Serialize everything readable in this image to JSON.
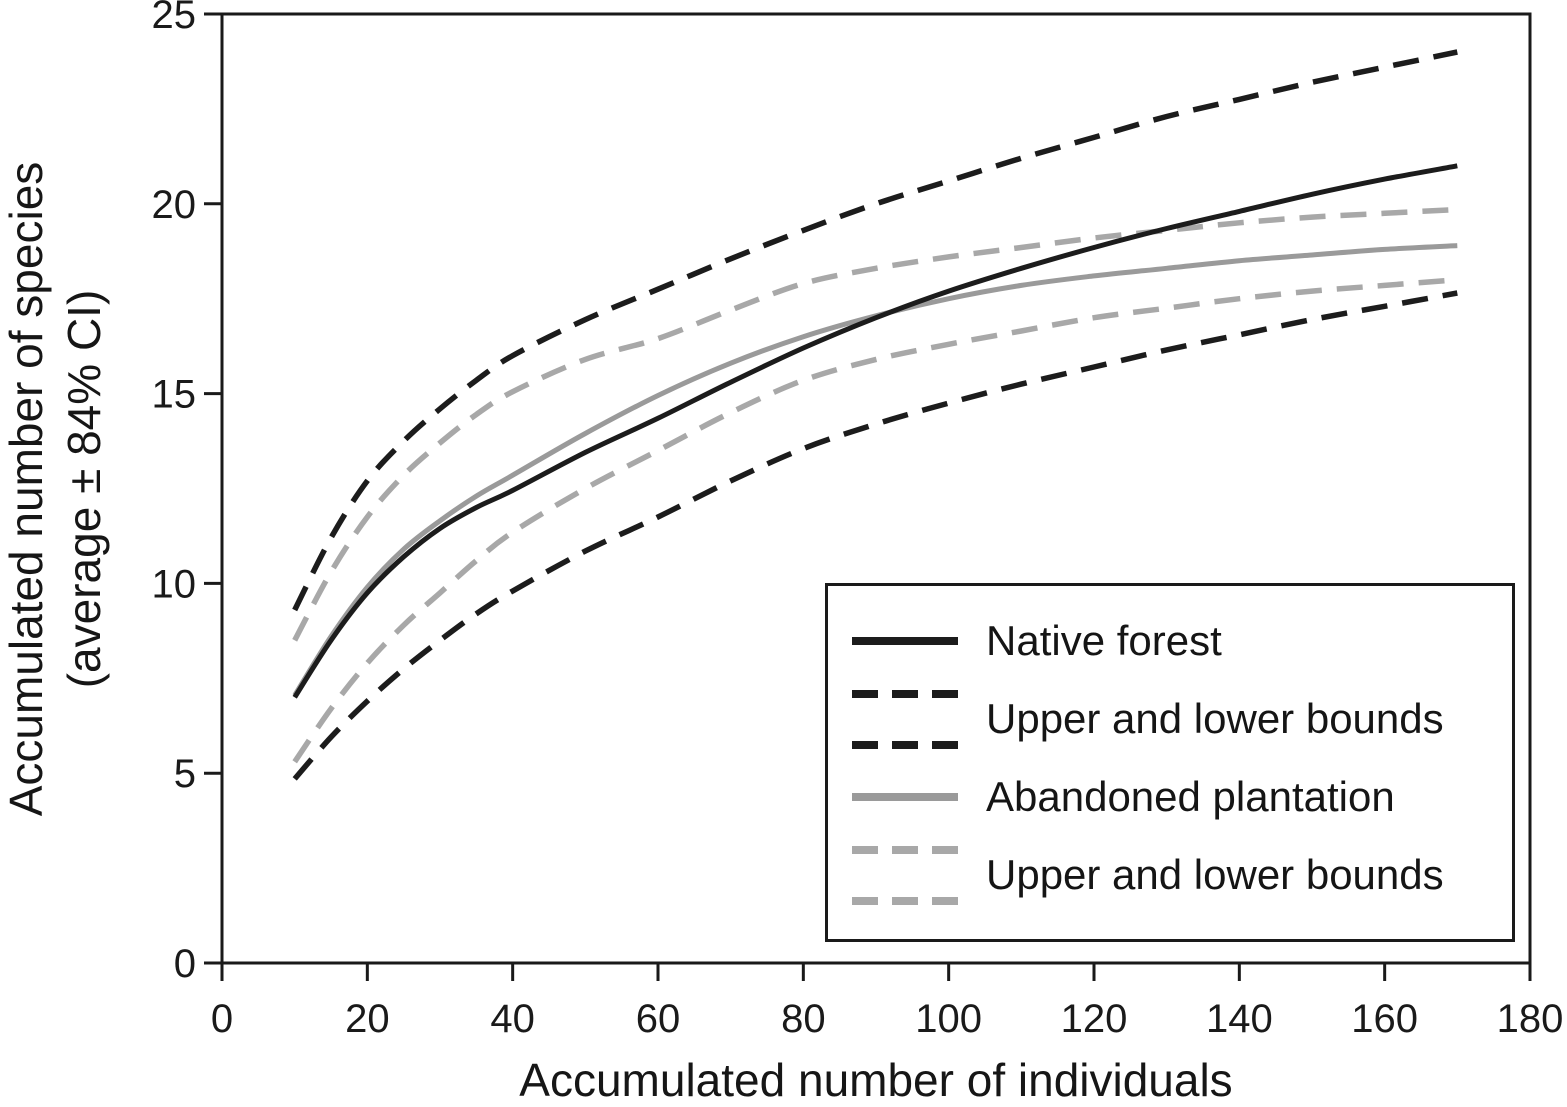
{
  "colors": {
    "black": "#1c1c1c",
    "gray_solid": "#9a9a9a",
    "gray_dash": "#a8a8a8",
    "axis": "#1a1a1a",
    "background": "#ffffff"
  },
  "legend": {
    "items": [
      {
        "label": "Native forest",
        "swatch": "solid-black"
      },
      {
        "label": "Upper and lower bounds",
        "swatch": "double-dash-black"
      },
      {
        "label": "Abandoned plantation",
        "swatch": "solid-gray"
      },
      {
        "label": "Upper and lower bounds",
        "swatch": "double-dash-gray"
      }
    ]
  },
  "chart_data": {
    "type": "line",
    "title": "",
    "xlabel": "Accumulated number of individuals",
    "ylabel": "Accumulated number of species (average ± 84% CI)",
    "ylabel_line1": "Accumulated number of species",
    "ylabel_line2": "(average ± 84% CI)",
    "xlim": [
      0,
      180
    ],
    "ylim": [
      0,
      25
    ],
    "x_ticks": [
      0,
      20,
      40,
      60,
      80,
      100,
      120,
      140,
      160,
      180
    ],
    "y_ticks": [
      0,
      5,
      10,
      15,
      20,
      25
    ],
    "grid": false,
    "legend_position": "lower right",
    "x": [
      10,
      15,
      20,
      25,
      30,
      35,
      40,
      50,
      60,
      70,
      80,
      90,
      100,
      110,
      120,
      130,
      140,
      150,
      160,
      170
    ],
    "series": [
      {
        "name": "Abandoned plantation upper bound",
        "style": "dashed",
        "color_key": "gray_dash",
        "values": [
          8.5,
          10.3,
          11.75,
          12.85,
          13.7,
          14.45,
          15.05,
          15.9,
          16.45,
          17.2,
          17.9,
          18.3,
          18.6,
          18.85,
          19.1,
          19.3,
          19.5,
          19.65,
          19.75,
          19.85
        ]
      },
      {
        "name": "Abandoned plantation lower bound",
        "style": "dashed",
        "color_key": "gray_dash",
        "values": [
          5.3,
          6.7,
          7.9,
          8.9,
          9.75,
          10.6,
          11.35,
          12.5,
          13.5,
          14.5,
          15.35,
          15.9,
          16.3,
          16.65,
          17.0,
          17.25,
          17.5,
          17.7,
          17.85,
          18.0
        ]
      },
      {
        "name": "Native forest upper bound",
        "style": "dashed",
        "color_key": "black",
        "values": [
          9.3,
          11.2,
          12.7,
          13.75,
          14.6,
          15.35,
          16.0,
          16.95,
          17.75,
          18.55,
          19.3,
          20.0,
          20.6,
          21.2,
          21.75,
          22.3,
          22.75,
          23.2,
          23.6,
          24.0
        ]
      },
      {
        "name": "Native forest lower bound",
        "style": "dashed",
        "color_key": "black",
        "values": [
          4.85,
          5.95,
          6.9,
          7.75,
          8.5,
          9.2,
          9.8,
          10.85,
          11.75,
          12.7,
          13.55,
          14.2,
          14.75,
          15.25,
          15.7,
          16.15,
          16.55,
          16.95,
          17.3,
          17.65
        ]
      },
      {
        "name": "Abandoned plantation",
        "style": "solid",
        "color_key": "gray_solid",
        "values": [
          7.05,
          8.6,
          9.9,
          10.9,
          11.65,
          12.3,
          12.85,
          13.95,
          14.95,
          15.8,
          16.5,
          17.05,
          17.5,
          17.85,
          18.1,
          18.3,
          18.5,
          18.65,
          18.8,
          18.9
        ]
      },
      {
        "name": "Native forest",
        "style": "solid",
        "color_key": "black",
        "values": [
          7.0,
          8.5,
          9.75,
          10.7,
          11.45,
          12.0,
          12.45,
          13.45,
          14.35,
          15.3,
          16.2,
          17.0,
          17.7,
          18.3,
          18.85,
          19.35,
          19.8,
          20.25,
          20.65,
          21.0
        ]
      }
    ]
  }
}
